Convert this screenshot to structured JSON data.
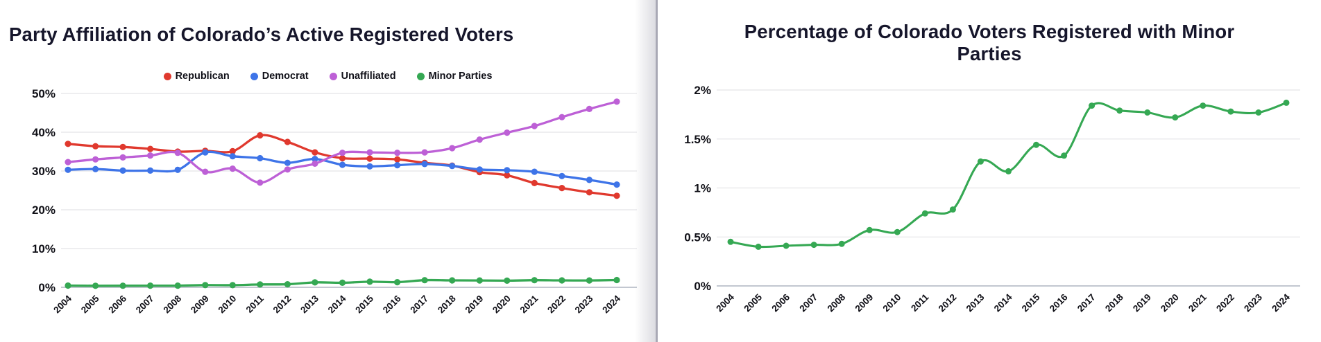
{
  "page": {
    "background": "#ffffff",
    "divider_color": "#a9a9b5"
  },
  "chart_data": [
    {
      "type": "line",
      "title": "Party Affiliation of Colorado’s Active Registered Voters",
      "categories": [
        2004,
        2005,
        2006,
        2007,
        2008,
        2009,
        2010,
        2011,
        2012,
        2013,
        2014,
        2015,
        2016,
        2017,
        2018,
        2019,
        2020,
        2021,
        2022,
        2023,
        2024
      ],
      "series": [
        {
          "name": "Republican",
          "color": "#e0392e",
          "values": [
            37.0,
            36.4,
            36.2,
            35.7,
            35.0,
            35.2,
            35.1,
            39.2,
            37.5,
            34.8,
            33.3,
            33.2,
            33.0,
            32.1,
            31.4,
            29.7,
            28.9,
            26.9,
            25.6,
            24.5,
            23.6
          ]
        },
        {
          "name": "Democrat",
          "color": "#3e74e8",
          "values": [
            30.3,
            30.5,
            30.1,
            30.1,
            30.3,
            34.8,
            33.8,
            33.3,
            32.1,
            33.1,
            31.6,
            31.2,
            31.5,
            31.8,
            31.3,
            30.4,
            30.2,
            29.8,
            28.7,
            27.7,
            26.5
          ]
        },
        {
          "name": "Unaffiliated",
          "color": "#bd60d6",
          "values": [
            32.3,
            33.0,
            33.5,
            34.0,
            34.7,
            29.8,
            30.6,
            27.0,
            30.4,
            31.9,
            34.7,
            34.8,
            34.7,
            34.8,
            35.9,
            38.1,
            39.9,
            41.6,
            43.9,
            46.0,
            47.9
          ]
        },
        {
          "name": "Minor Parties",
          "color": "#35a853",
          "values": [
            0.45,
            0.4,
            0.41,
            0.42,
            0.43,
            0.57,
            0.55,
            0.74,
            0.78,
            1.27,
            1.17,
            1.44,
            1.33,
            1.84,
            1.79,
            1.77,
            1.72,
            1.84,
            1.78,
            1.77,
            1.87
          ]
        }
      ],
      "ylim": [
        0,
        50
      ],
      "ytick_values": [
        0,
        10,
        20,
        30,
        40,
        50
      ],
      "ytick_labels": [
        "0%",
        "10%",
        "20%",
        "30%",
        "40%",
        "50%"
      ],
      "grid": true,
      "legend_position": "top"
    },
    {
      "type": "line",
      "title": "Percentage of Colorado Voters Registered with Minor Parties",
      "categories": [
        2004,
        2005,
        2006,
        2007,
        2008,
        2009,
        2010,
        2011,
        2012,
        2013,
        2014,
        2015,
        2016,
        2017,
        2018,
        2019,
        2020,
        2021,
        2022,
        2023,
        2024
      ],
      "series": [
        {
          "name": "Minor Parties",
          "color": "#35a853",
          "values": [
            0.45,
            0.4,
            0.41,
            0.42,
            0.43,
            0.57,
            0.55,
            0.74,
            0.78,
            1.27,
            1.17,
            1.44,
            1.33,
            1.84,
            1.79,
            1.77,
            1.72,
            1.84,
            1.78,
            1.77,
            1.87
          ]
        }
      ],
      "ylim": [
        0,
        2
      ],
      "ytick_values": [
        0,
        0.5,
        1,
        1.5,
        2
      ],
      "ytick_labels": [
        "0%",
        "0.5%",
        "1%",
        "1.5%",
        "2%"
      ],
      "grid": true,
      "legend_position": "none"
    }
  ],
  "colors": {
    "gridline": "#e4e4e7",
    "baseline": "#b9bfc9",
    "title_text": "#16162b",
    "axis_text": "#0f0f16"
  }
}
